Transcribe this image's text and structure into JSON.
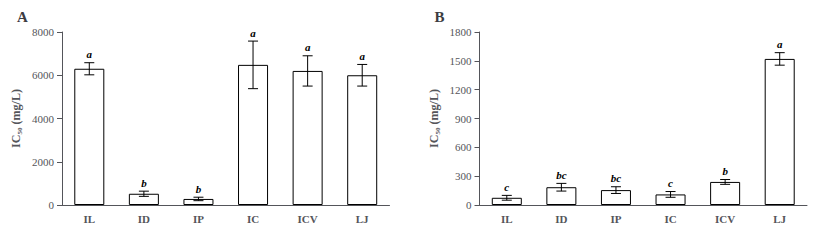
{
  "chart_data": [
    {
      "type": "bar",
      "title": "A",
      "categories": [
        "IL",
        "ID",
        "IP",
        "IC",
        "ICV",
        "LJ"
      ],
      "values": [
        6300,
        520,
        280,
        6480,
        6200,
        6000
      ],
      "errors": [
        280,
        120,
        80,
        1100,
        700,
        500
      ],
      "annotations": [
        "a",
        "b",
        "b",
        "a",
        "a",
        "a"
      ],
      "ylabel": "IC₅₀ (mg/L)",
      "ylim": [
        0,
        8000
      ],
      "yticks": [
        0,
        2000,
        4000,
        6000,
        8000
      ],
      "color": "#ffffff",
      "grid": false
    },
    {
      "type": "bar",
      "title": "B",
      "categories": [
        "IL",
        "ID",
        "IP",
        "IC",
        "ICV",
        "LJ"
      ],
      "values": [
        75,
        185,
        155,
        110,
        240,
        1520
      ],
      "errors": [
        25,
        40,
        35,
        30,
        25,
        65
      ],
      "annotations": [
        "c",
        "bc",
        "bc",
        "c",
        "b",
        "a"
      ],
      "ylabel": "IC₅₀ (mg/L)",
      "ylim": [
        0,
        1800
      ],
      "yticks": [
        0,
        300,
        600,
        900,
        1200,
        1500,
        1800
      ],
      "color": "#ffffff",
      "grid": false
    }
  ]
}
